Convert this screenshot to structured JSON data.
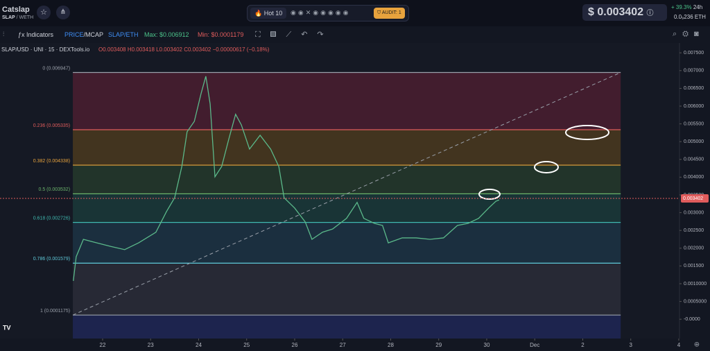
{
  "header": {
    "token": "Catslap",
    "pair_base": "SLAP",
    "pair_quote": "/ WETH",
    "hot": "Hot 10",
    "audit": "AUDIT: 1",
    "price": "$ 0.003402",
    "change": "+ 39.3%",
    "period": "24h",
    "eth_price": "0.0₉236",
    "eth_unit": "ETH"
  },
  "toolbar": {
    "indicators": "Indicators",
    "price": "PRICE",
    "mcap": "/MCAP",
    "pair": "SLAP/ETH",
    "max": "Max: $0.006912",
    "min": "Min: $0.0001179"
  },
  "legend": {
    "symbol": "SLAP/USD · UNI · 15 · DEXTools.io",
    "ohlc": "O0.003408 H0.003418 L0.003402 C0.003402 −0.00000617 (−0.18%)"
  },
  "chart_data": {
    "type": "line",
    "x": [
      21.39,
      21.45,
      21.6,
      21.88,
      22.17,
      22.46,
      22.75,
      23.11,
      23.33,
      23.5,
      23.65,
      23.76,
      23.91,
      24.05,
      24.15,
      24.24,
      24.34,
      24.48,
      24.63,
      24.77,
      24.89,
      25.06,
      25.28,
      25.5,
      25.67,
      25.78,
      26.0,
      26.22,
      26.36,
      26.58,
      26.79,
      27.08,
      27.3,
      27.44,
      27.66,
      27.83,
      27.95,
      28.24,
      28.53,
      28.82,
      29.1,
      29.39,
      29.61,
      29.83,
      30.04,
      30.19,
      30.26
    ],
    "series": [
      {
        "name": "SLAP/USD",
        "color": "#5bb98a",
        "values": [
          0.00108,
          0.00176,
          0.00225,
          0.00215,
          0.00205,
          0.00196,
          0.00215,
          0.00245,
          0.00303,
          0.00342,
          0.0043,
          0.00528,
          0.00557,
          0.00635,
          0.00684,
          0.00606,
          0.00401,
          0.0043,
          0.00508,
          0.00577,
          0.00547,
          0.00479,
          0.00518,
          0.00479,
          0.0043,
          0.00342,
          0.00313,
          0.00274,
          0.00225,
          0.00245,
          0.00254,
          0.00284,
          0.00329,
          0.00284,
          0.0027,
          0.00264,
          0.00215,
          0.00229,
          0.00229,
          0.00225,
          0.00229,
          0.00264,
          0.0027,
          0.00284,
          0.00313,
          0.00332,
          0.00336
        ]
      }
    ],
    "xlim": [
      19.863,
      34.015
    ],
    "xticks": [
      22,
      23,
      24,
      25,
      26,
      27,
      28,
      29,
      30,
      {
        "value": 31,
        "label": "Dec"
      },
      {
        "value": 32,
        "label": "2"
      },
      {
        "value": 33,
        "label": "3"
      },
      {
        "value": 34,
        "label": "4"
      }
    ],
    "ylim": [
      -0.000543,
      0.007777
    ],
    "yticks": [
      {
        "value": 0,
        "label": "-0.0000"
      },
      {
        "value": 0.0005,
        "label": "0.0005000"
      },
      {
        "value": 0.001,
        "label": "0.0010000"
      },
      {
        "value": 0.0015,
        "label": "0.001500"
      },
      {
        "value": 0.002,
        "label": "0.002000"
      },
      {
        "value": 0.0025,
        "label": "0.002500"
      },
      {
        "value": 0.003,
        "label": "0.003000"
      },
      {
        "value": 0.0035,
        "label": "0.003500"
      },
      {
        "value": 0.004,
        "label": "0.004000"
      },
      {
        "value": 0.0045,
        "label": "0.004500"
      },
      {
        "value": 0.005,
        "label": "0.005000"
      },
      {
        "value": 0.0055,
        "label": "0.005500"
      },
      {
        "value": 0.006,
        "label": "0.006000"
      },
      {
        "value": 0.0065,
        "label": "0.006500"
      },
      {
        "value": 0.007,
        "label": "0.007000"
      },
      {
        "value": 0.0075,
        "label": "0.007500"
      }
    ],
    "current_price": 0.003402,
    "current_price_label": "0.003402",
    "fib_x": [
      21.38,
      32.79
    ],
    "fib_levels": [
      {
        "label": "0 (0.006947)",
        "price": 0.006947,
        "color": "#9aa0aa",
        "fill": "#4a1f30"
      },
      {
        "label": "0.236 (0.005335)",
        "price": 0.005335,
        "color": "#e05c5c",
        "fill": "#4a3a1e"
      },
      {
        "label": "0.382 (0.004338)",
        "price": 0.004338,
        "color": "#e8a33d",
        "fill": "#243a2c"
      },
      {
        "label": "0.5 (0.003532)",
        "price": 0.003532,
        "color": "#6bb36b",
        "fill": "#1a3a3a"
      },
      {
        "label": "0.618 (0.002726)",
        "price": 0.002726,
        "color": "#3fb9b0",
        "fill": "#1c3444"
      },
      {
        "label": "0.786 (0.001579)",
        "price": 0.001579,
        "color": "#5fc9d9",
        "fill": "#2a2d38"
      },
      {
        "label": "1 (0.0001175)",
        "price": 0.0001175,
        "color": "#9aa0aa",
        "fill": "#1e2756"
      }
    ]
  }
}
